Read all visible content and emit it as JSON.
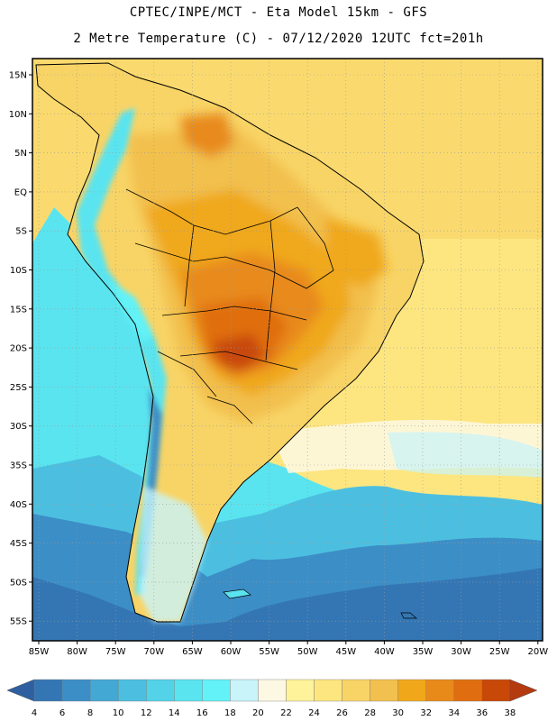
{
  "header": {
    "title_line1": "CPTEC/INPE/MCT -  Eta Model 15km - GFS",
    "title_line2": "2 Metre Temperature (C) - 07/12/2020 12UTC fct=201h"
  },
  "map": {
    "lat_labels": [
      "15N",
      "10N",
      "5N",
      "EQ",
      "5S",
      "10S",
      "15S",
      "20S",
      "25S",
      "30S",
      "35S",
      "40S",
      "45S",
      "50S",
      "55S"
    ],
    "lon_labels": [
      "85W",
      "80W",
      "75W",
      "70W",
      "65W",
      "60W",
      "55W",
      "50W",
      "45W",
      "40W",
      "35W",
      "30W",
      "25W",
      "20W"
    ]
  },
  "colorbar": {
    "labels": [
      "4",
      "6",
      "8",
      "10",
      "12",
      "14",
      "16",
      "18",
      "20",
      "22",
      "24",
      "26",
      "28",
      "30",
      "32",
      "34",
      "36",
      "38"
    ],
    "colors": [
      "#2e5fa0",
      "#3476b4",
      "#3c8ec6",
      "#44a8d4",
      "#4cbfe0",
      "#53d2e8",
      "#5ae4ef",
      "#62f2f7",
      "#c8f4fa",
      "#fdf8e4",
      "#fef29a",
      "#fde680",
      "#f8d466",
      "#f2c04e",
      "#f0a81a",
      "#e88a1a",
      "#e06e10",
      "#c84808",
      "#b43a10"
    ]
  }
}
